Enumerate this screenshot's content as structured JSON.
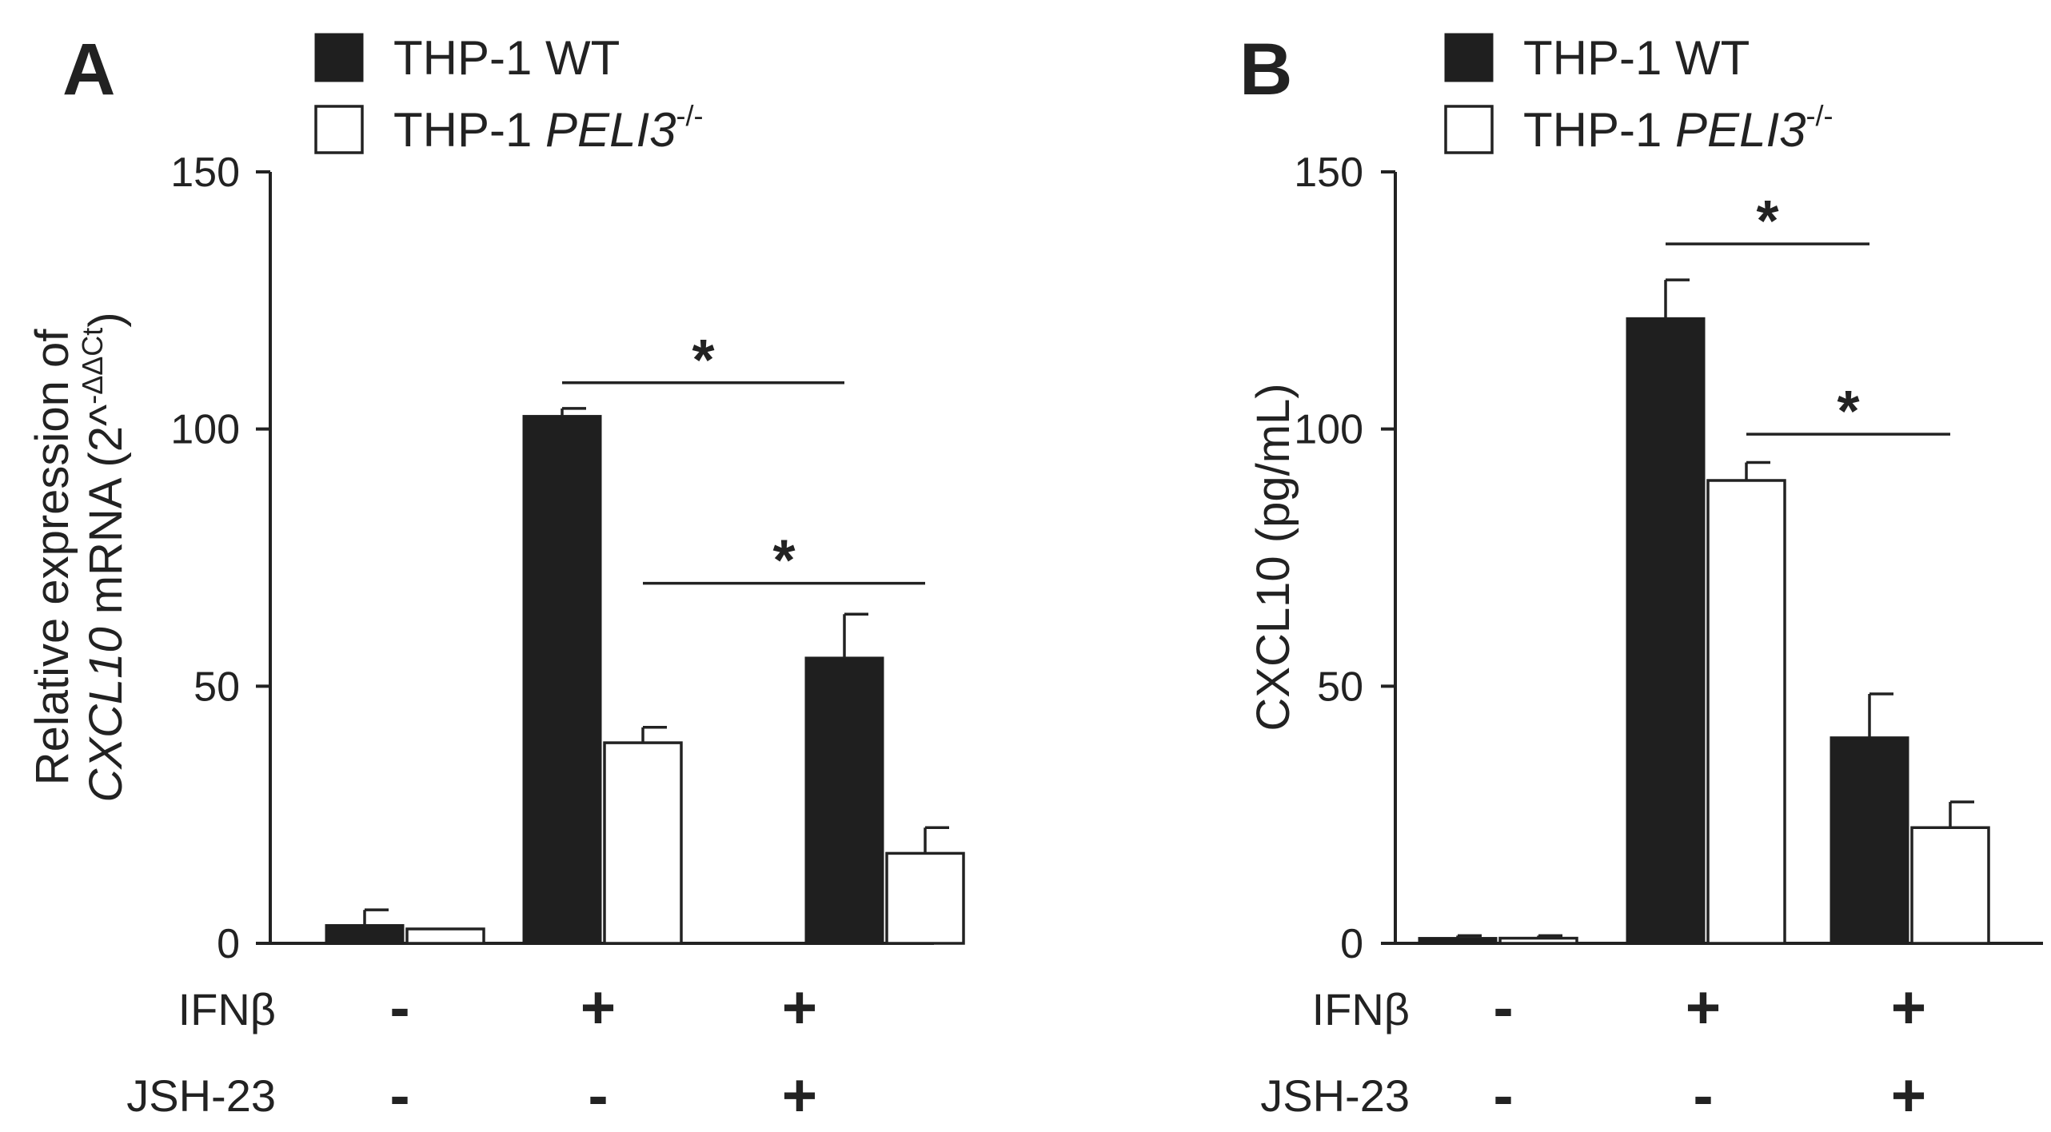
{
  "chart_data": [
    {
      "type": "bar",
      "panel": "A",
      "legend": [
        {
          "key": "wt",
          "prefix": "THP-1 ",
          "name": "WT",
          "italic": false,
          "sup": ""
        },
        {
          "key": "ko",
          "prefix": "THP-1 ",
          "name": "PELI3",
          "italic": true,
          "sup": "-/-"
        }
      ],
      "ylabel_line1": "Relative expression of",
      "ylabel_line2_italic": "CXCL10",
      "ylabel_line2_rest": " mRNA (2^",
      "ylabel_line2_sup": "-ΔΔCt",
      "ylabel_line2_end": ")",
      "ylim": [
        0,
        150
      ],
      "yticks": [
        0,
        50,
        100,
        150
      ],
      "categories": [
        "IFNβ -, JSH-23 -",
        "IFNβ +, JSH-23 -",
        "IFNβ +, JSH-23 +"
      ],
      "series": [
        {
          "name": "THP-1 WT",
          "key": "wt",
          "values": [
            3.5,
            102.5,
            55.5
          ],
          "errors": [
            3,
            1.5,
            8.5
          ]
        },
        {
          "name": "THP-1 PELI3-/-",
          "key": "ko",
          "values": [
            2.8,
            39,
            17.5
          ],
          "errors": [
            0,
            3,
            5
          ]
        }
      ],
      "conditions": {
        "row_labels": [
          "IFNβ",
          "JSH-23"
        ],
        "IFNβ": [
          "-",
          "+",
          "+"
        ],
        "JSH-23": [
          "-",
          "-",
          "+"
        ]
      },
      "significance": [
        {
          "label": "*",
          "from_group": 1,
          "from_key": "wt",
          "to_group": 2,
          "to_key": "wt",
          "y": 109
        },
        {
          "label": "*",
          "from_group": 1,
          "from_key": "ko",
          "to_group": 2,
          "to_key": "ko",
          "y": 70
        }
      ]
    },
    {
      "type": "bar",
      "panel": "B",
      "legend": [
        {
          "key": "wt",
          "prefix": "THP-1 ",
          "name": "WT",
          "italic": false,
          "sup": ""
        },
        {
          "key": "ko",
          "prefix": "THP-1 ",
          "name": "PELI3",
          "italic": true,
          "sup": "-/-"
        }
      ],
      "ylabel": "CXCL10  (pg/mL)",
      "ylim": [
        0,
        150
      ],
      "yticks": [
        0,
        50,
        100,
        150
      ],
      "categories": [
        "IFNβ -, JSH-23 -",
        "IFNβ +, JSH-23 -",
        "IFNβ +, JSH-23 +"
      ],
      "series": [
        {
          "name": "THP-1 WT",
          "key": "wt",
          "values": [
            1,
            121.5,
            40
          ],
          "errors": [
            0.5,
            7.5,
            8.5
          ]
        },
        {
          "name": "THP-1 PELI3-/-",
          "key": "ko",
          "values": [
            1,
            90,
            22.5
          ],
          "errors": [
            0.5,
            3.5,
            5
          ]
        }
      ],
      "conditions": {
        "row_labels": [
          "IFNβ",
          "JSH-23"
        ],
        "IFNβ": [
          "-",
          "+",
          "+"
        ],
        "JSH-23": [
          "-",
          "-",
          "+"
        ]
      },
      "significance": [
        {
          "label": "*",
          "from_group": 1,
          "from_key": "wt",
          "to_group": 2,
          "to_key": "wt",
          "y": 136
        },
        {
          "label": "*",
          "from_group": 1,
          "from_key": "ko",
          "to_group": 2,
          "to_key": "ko",
          "y": 99
        }
      ]
    }
  ]
}
